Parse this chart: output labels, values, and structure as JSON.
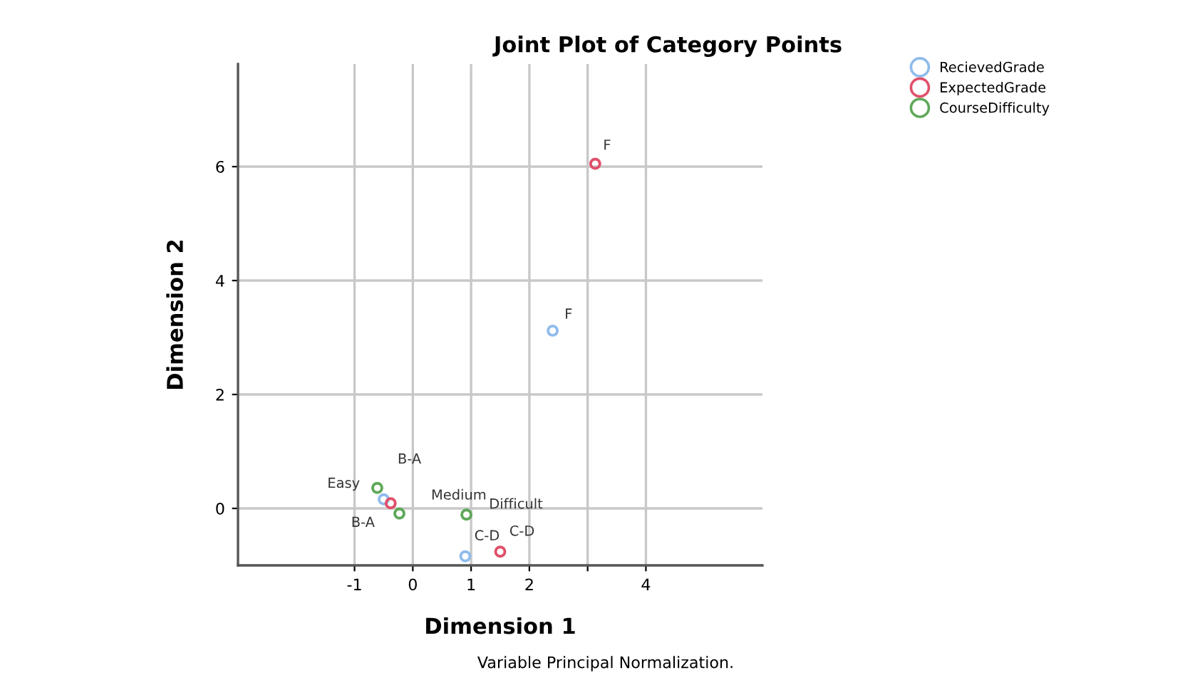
{
  "chart_data": {
    "type": "scatter",
    "title": "Joint Plot of Category Points",
    "xlabel": "Dimension 1",
    "ylabel": "Dimension 2",
    "series": [
      {
        "name": "RecievedGrade",
        "color": "#8fbcec",
        "x": [
          -0.5,
          0.9,
          2.4
        ],
        "values": [
          0.16,
          -0.84,
          3.12
        ]
      },
      {
        "name": "ExpectedGrade",
        "color": "#e0506a",
        "x": [
          -0.38,
          1.5,
          3.13
        ],
        "values": [
          0.09,
          -0.76,
          6.05
        ]
      },
      {
        "name": "CourseDifficulty",
        "color": "#5fa85a",
        "x": [
          -0.61,
          -0.23,
          0.92
        ],
        "values": [
          0.36,
          -0.09,
          -0.11
        ]
      }
    ],
    "annotations": [
      {
        "text": "Easy",
        "x": -0.61,
        "y": 0.36
      },
      {
        "text": "B-A",
        "x": -0.5,
        "y": 0.16
      },
      {
        "text": "B-A",
        "x": -0.38,
        "y": 0.09
      },
      {
        "text": "Medium",
        "x": -0.23,
        "y": -0.09
      },
      {
        "text": "Difficult",
        "x": 0.92,
        "y": -0.11
      },
      {
        "text": "C-D",
        "x": 0.9,
        "y": -0.84
      },
      {
        "text": "C-D",
        "x": 1.5,
        "y": -0.76
      },
      {
        "text": "F",
        "x": 3.13,
        "y": 6.05
      },
      {
        "text": "F",
        "x": 2.4,
        "y": 3.12
      },
      "Variable Principal Normalization."
    ],
    "xlim": [
      -3,
      6
    ],
    "ylim": [
      -1,
      7.8
    ],
    "xticks": [
      -1,
      0,
      1,
      2,
      {
        "value": 3,
        "label": null
      },
      4
    ],
    "yticks": [
      0,
      2,
      4,
      6
    ],
    "grid": true,
    "legend": "top right",
    "marker": "circle"
  }
}
